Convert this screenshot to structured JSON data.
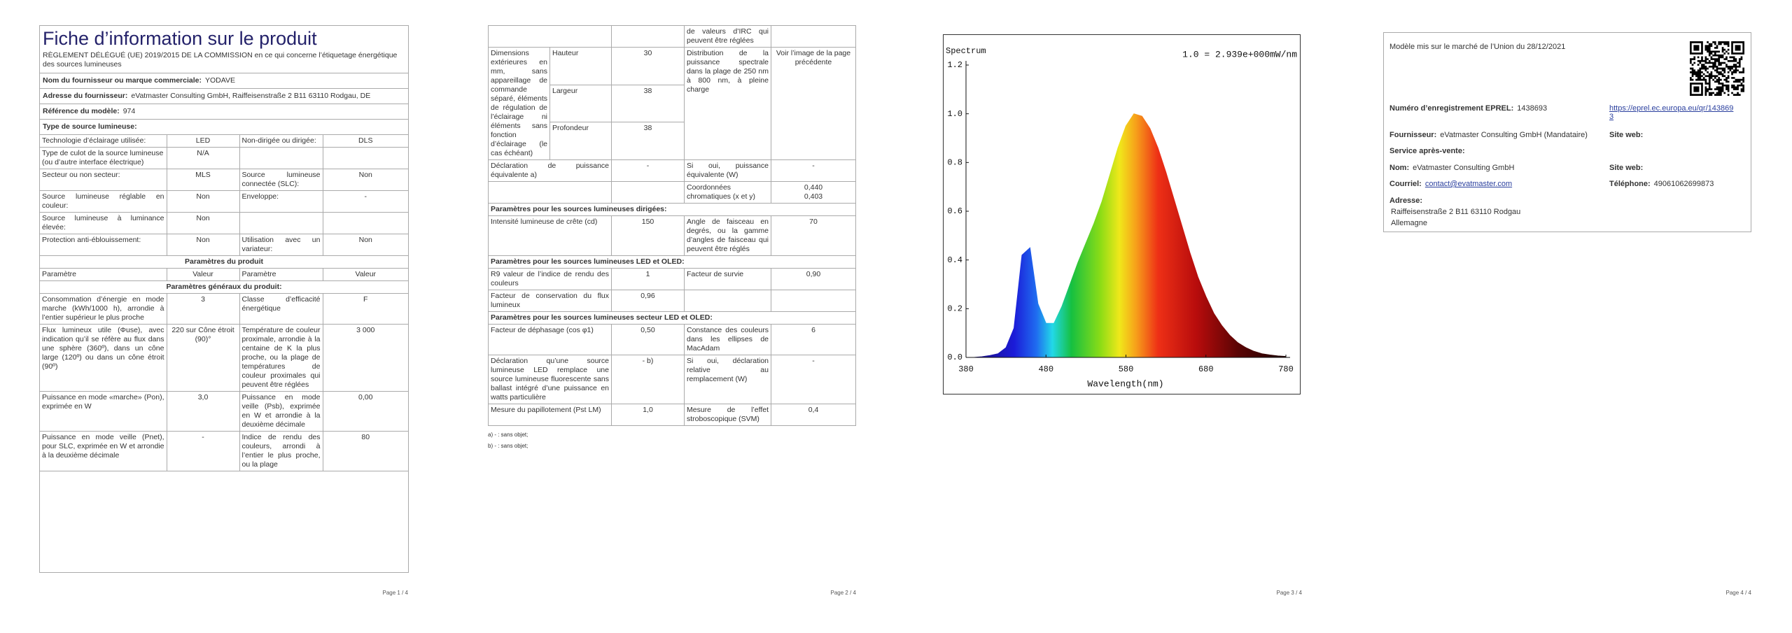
{
  "page1": {
    "title": "Fiche d’information sur le produit",
    "regulation": "RÈGLEMENT DÉLÉGUÉ (UE) 2019/2015 DE LA COMMISSION en ce qui concerne l’étiquetage énergétique des sources lumineuses",
    "rows": [
      {
        "label": "Nom du fournisseur ou marque commerciale:",
        "value": "YODAVE"
      },
      {
        "label": "Adresse du fournisseur:",
        "value": "eVatmaster Consulting GmbH, Raiffeisenstraße 2 B11 63110 Rodgau, DE"
      },
      {
        "label": "Référence du modèle:",
        "value": "974"
      },
      {
        "label": "Type de source lumineuse:"
      },
      [
        "Technologie d’éclairage utilisée:",
        "LED",
        "Non-dirigée ou dirigée:",
        "DLS"
      ],
      [
        "Type de culot de la source lumineuse\n(ou d’autre interface électrique)",
        "N/A",
        null,
        null
      ],
      [
        "Secteur ou non secteur:",
        "MLS",
        "Source lumineuse connectée (SLC):",
        "Non"
      ],
      [
        "Source lumineuse réglable en couleur:",
        "Non",
        "Enveloppe:",
        "-"
      ],
      [
        "Source lumineuse à luminance élevée:",
        "Non",
        null,
        null
      ],
      [
        "Protection anti-éblouissement:",
        "Non",
        "Utilisation avec un variateur:",
        "Non"
      ],
      "Paramètres du produit",
      [
        "Paramètre",
        "Valeur",
        "Paramètre",
        "Valeur"
      ],
      "Paramètres généraux du produit:",
      [
        "Consommation d’énergie en mode marche (kWh/1000 h), arrondie à l’entier supérieur le plus proche",
        "3",
        "Classe d’efficacité énergétique",
        "F"
      ],
      [
        "Flux lumineux utile (Φuse), avec indication qu’il se réfère au flux dans une sphère (360º), dans un cône large (120º) ou dans un cône étroit (90º)",
        "220 sur Cône étroit (90)°",
        "Température de couleur proximale, arrondie à la centaine de K la plus proche, ou la plage de températures de couleur proximales qui peuvent être réglées",
        "3 000"
      ],
      [
        "Puissance en mode «marche» (Pon), exprimée en W",
        "3,0",
        "Puissance en mode veille (Psb), exprimée en W et arrondie à la deuxième décimale",
        "0,00"
      ],
      [
        "Puissance en mode veille (Pnet), pour SLC, exprimée en W et arrondie à la deuxième décimale",
        "-",
        "Indice de rendu des couleurs, arrondi à l’entier le plus proche, ou la plage",
        "80"
      ]
    ],
    "page_number": "Page 1 / 4"
  },
  "page2": {
    "rows": [
      [
        null,
        null,
        "de valeurs d’IRC qui peuvent être réglées",
        null
      ],
      {
        "label": "Dimensions extérieures en mm, sans appareillage de commande séparé, éléments de régulation de l’éclairage ni éléments sans fonction d’éclairage (le cas échéant)",
        "dims": [
          [
            "Hauteur",
            "30"
          ],
          [
            "Largeur",
            "38"
          ],
          [
            "Profondeur",
            "38"
          ]
        ],
        "spectral_label": "Distribution de la puissance spectrale dans la plage de 250 nm à 800 nm, à pleine charge",
        "spectral_value": "Voir l’image de la page précédente"
      },
      [
        "Déclaration de puissance équivalente a)",
        "-",
        "Si oui, puissance équivalente (W)",
        "-"
      ],
      [
        null,
        null,
        "Coordonnées chromatiques (x et y)",
        "0,440\n0,403"
      ],
      "Paramètres pour les sources lumineuses dirigées:",
      [
        "Intensité lumineuse de crête (cd)",
        "150",
        "Angle de faisceau en degrés, ou la gamme d’angles de faisceau qui peuvent être réglés",
        "70"
      ],
      "Paramètres pour les sources lumineuses LED et OLED:",
      [
        "R9 valeur de l’indice de rendu des couleurs",
        "1",
        "Facteur de survie",
        "0,90"
      ],
      [
        "Facteur de conservation du flux lumineux",
        "0,96",
        null,
        null
      ],
      "Paramètres pour les sources lumineuses secteur LED et OLED:",
      [
        "Facteur de déphasage (cos φ1)",
        "0,50",
        "Constance des couleurs dans les ellipses de MacAdam",
        "6"
      ],
      [
        "Déclaration qu’une source lumineuse LED remplace une source lumineuse fluorescente sans ballast intégré d’une puissance en watts particulière",
        "- b)",
        "Si oui, déclaration relative au remplacement (W)",
        "-"
      ],
      [
        "Mesure du papillotement (Pst LM)",
        "1,0",
        "Mesure de l’effet stroboscopique (SVM)",
        "0,4"
      ]
    ],
    "footnotes": [
      "a) - : sans objet;",
      "b) - : sans objet;"
    ],
    "page_number": "Page 2 / 4"
  },
  "spectrum": {
    "type": "area",
    "title": "Spectrum",
    "annotation": "1.0 = 2.939e+000mW/nm",
    "xlabel": "Wavelength(nm)",
    "x": [
      380,
      390,
      400,
      410,
      420,
      430,
      440,
      450,
      460,
      470,
      480,
      490,
      500,
      510,
      520,
      530,
      540,
      550,
      560,
      570,
      580,
      590,
      600,
      610,
      620,
      630,
      640,
      650,
      660,
      670,
      680,
      690,
      700,
      710,
      720,
      730,
      740,
      750,
      760,
      770,
      780
    ],
    "values": [
      0,
      0,
      0.003,
      0.008,
      0.015,
      0.04,
      0.12,
      0.42,
      0.45,
      0.22,
      0.14,
      0.14,
      0.21,
      0.3,
      0.39,
      0.47,
      0.55,
      0.64,
      0.75,
      0.86,
      0.95,
      1.0,
      0.99,
      0.94,
      0.86,
      0.76,
      0.65,
      0.54,
      0.43,
      0.33,
      0.25,
      0.18,
      0.13,
      0.09,
      0.06,
      0.04,
      0.025,
      0.015,
      0.01,
      0.006,
      0.004
    ],
    "xlim": [
      380,
      780
    ],
    "ylim": [
      0,
      1.2
    ],
    "xticks": [
      380,
      480,
      580,
      680,
      780
    ],
    "yticks": [
      {
        "value": 0,
        "label": "0.0"
      },
      0.2,
      0.4,
      0.6,
      0.8,
      {
        "value": 1,
        "label": "1.0"
      },
      1.2
    ],
    "page_number": "Page 3 / 4"
  },
  "page4": {
    "market": "Modèle mis sur le marché de l’Union du 28/12/2021",
    "eprel_label": "Numéro d’enregistrement EPREL:",
    "eprel_value": "1438693",
    "eprel_link": "https://eprel.ec.europa.eu/qr/1438693",
    "supplier_label": "Fournisseur:",
    "supplier_value": "eVatmaster Consulting GmbH (Mandataire)",
    "website_label_1": "Site web:",
    "service": "Service après-vente:",
    "name_label": "Nom:",
    "name_value": "eVatmaster Consulting GmbH",
    "website_label_2": "Site web:",
    "email_label": "Courriel:",
    "email_value": "contact@evatmaster.com",
    "phone_label": "Téléphone:",
    "phone_value": "49061062699873",
    "address_label": "Adresse:",
    "address_lines": [
      "Raiffeisenstraße 2 B11 63110 Rodgau",
      "Allemagne"
    ],
    "page_number": "Page 4 / 4"
  }
}
